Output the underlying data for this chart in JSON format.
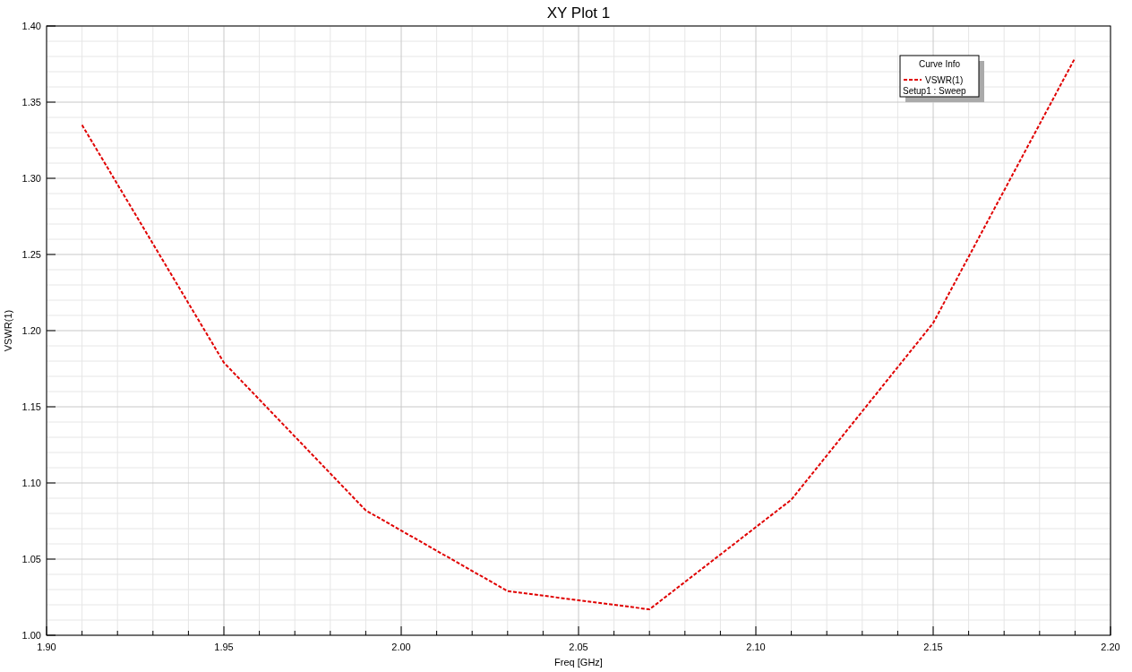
{
  "chart_data": {
    "type": "line",
    "title": "XY Plot 1",
    "xlabel": "Freq [GHz]",
    "ylabel": "VSWR(1)",
    "legend_title": "Curve Info",
    "annotations": [
      "Setup1 : Sweep"
    ],
    "x": [
      1.91,
      1.95,
      1.99,
      2.03,
      2.07,
      2.11,
      2.15,
      2.19
    ],
    "series": [
      {
        "name": "VSWR(1)",
        "color": "#e00000",
        "values": [
          1.335,
          1.179,
          1.082,
          1.029,
          1.017,
          1.089,
          1.205,
          1.379
        ]
      }
    ],
    "xlim": [
      1.9,
      2.2
    ],
    "xticks": [
      {
        "value": 1.9,
        "label": "1.90"
      },
      {
        "value": 1.95,
        "label": "1.95"
      },
      {
        "value": 2.0,
        "label": "2.00"
      },
      {
        "value": 2.05,
        "label": "2.05"
      },
      {
        "value": 2.1,
        "label": "2.10"
      },
      {
        "value": 2.15,
        "label": "2.15"
      },
      {
        "value": 2.2,
        "label": "2.20"
      }
    ],
    "ylim": [
      1.0,
      1.4
    ],
    "yticks": [
      {
        "value": 1.0,
        "label": "1.00"
      },
      {
        "value": 1.05,
        "label": "1.05"
      },
      {
        "value": 1.1,
        "label": "1.10"
      },
      {
        "value": 1.15,
        "label": "1.15"
      },
      {
        "value": 1.2,
        "label": "1.20"
      },
      {
        "value": 1.25,
        "label": "1.25"
      },
      {
        "value": 1.3,
        "label": "1.30"
      },
      {
        "value": 1.35,
        "label": "1.35"
      },
      {
        "value": 1.4,
        "label": "1.40"
      }
    ],
    "grid": true,
    "legend": "top right",
    "line_style": "dashed",
    "marker": "none"
  }
}
